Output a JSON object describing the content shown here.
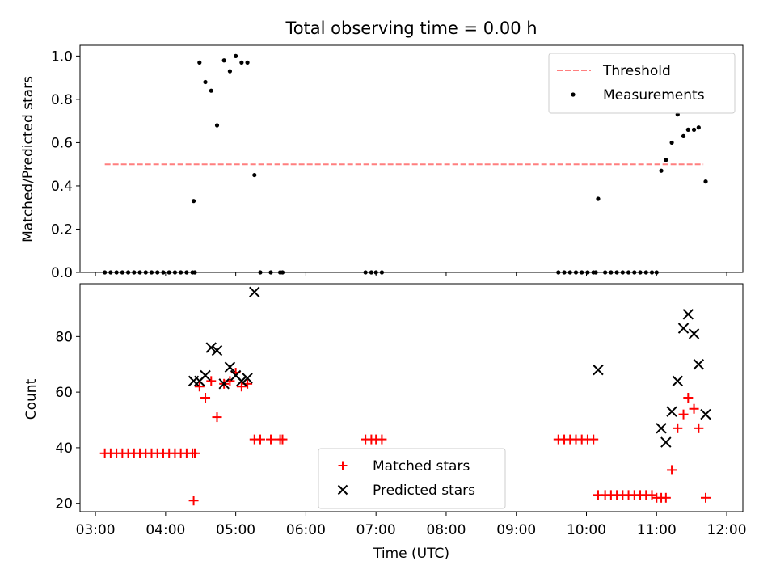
{
  "chart_data": [
    {
      "type": "scatter",
      "title": "Total observing time = 0.00 h",
      "xlabel": "",
      "ylabel": "Matched/Predicted stars",
      "ylim": [
        0,
        1.05
      ],
      "yticks": [
        "0.0",
        "0.2",
        "0.4",
        "0.6",
        "0.8",
        "1.0"
      ],
      "legend_placement": "top-right",
      "threshold": {
        "name": "Threshold",
        "value": 0.5,
        "x_start": "03:08",
        "x_end": "11:40",
        "color": "#ff7f7f"
      },
      "series": [
        {
          "name": "Measurements",
          "color": "#000000",
          "points": [
            [
              "03:08",
              0
            ],
            [
              "03:13",
              0
            ],
            [
              "03:18",
              0
            ],
            [
              "03:23",
              0
            ],
            [
              "03:28",
              0
            ],
            [
              "03:33",
              0
            ],
            [
              "03:38",
              0
            ],
            [
              "03:43",
              0
            ],
            [
              "03:48",
              0
            ],
            [
              "03:53",
              0
            ],
            [
              "03:58",
              0
            ],
            [
              "04:03",
              0
            ],
            [
              "04:08",
              0
            ],
            [
              "04:13",
              0
            ],
            [
              "04:18",
              0
            ],
            [
              "04:23",
              0
            ],
            [
              "04:25",
              0
            ],
            [
              "04:24",
              0.33
            ],
            [
              "04:29",
              0.97
            ],
            [
              "04:34",
              0.88
            ],
            [
              "04:39",
              0.84
            ],
            [
              "04:44",
              0.68
            ],
            [
              "04:50",
              0.98
            ],
            [
              "04:55",
              0.93
            ],
            [
              "05:00",
              1.0
            ],
            [
              "05:05",
              0.97
            ],
            [
              "05:10",
              0.97
            ],
            [
              "05:16",
              0.45
            ],
            [
              "05:21",
              0
            ],
            [
              "05:30",
              0
            ],
            [
              "05:38",
              0
            ],
            [
              "05:40",
              0
            ],
            [
              "06:51",
              0
            ],
            [
              "06:56",
              0
            ],
            [
              "07:00",
              0
            ],
            [
              "07:05",
              0
            ],
            [
              "09:36",
              0
            ],
            [
              "09:41",
              0
            ],
            [
              "09:46",
              0
            ],
            [
              "09:51",
              0
            ],
            [
              "09:56",
              0
            ],
            [
              "10:01",
              0
            ],
            [
              "10:06",
              0
            ],
            [
              "10:08",
              0
            ],
            [
              "10:10",
              0.34
            ],
            [
              "10:16",
              0
            ],
            [
              "10:21",
              0
            ],
            [
              "10:26",
              0
            ],
            [
              "10:31",
              0
            ],
            [
              "10:36",
              0
            ],
            [
              "10:41",
              0
            ],
            [
              "10:46",
              0
            ],
            [
              "10:51",
              0
            ],
            [
              "10:56",
              0
            ],
            [
              "11:00",
              0
            ],
            [
              "11:04",
              0.47
            ],
            [
              "11:08",
              0.52
            ],
            [
              "11:13",
              0.6
            ],
            [
              "11:18",
              0.73
            ],
            [
              "11:23",
              0.63
            ],
            [
              "11:27",
              0.66
            ],
            [
              "11:32",
              0.66
            ],
            [
              "11:36",
              0.67
            ],
            [
              "11:42",
              0.42
            ]
          ]
        }
      ]
    },
    {
      "type": "scatter",
      "title": "",
      "xlabel": "Time (UTC)",
      "ylabel": "Count",
      "ylim": [
        17,
        99
      ],
      "yticks": [
        "20",
        "40",
        "60",
        "80"
      ],
      "xticks": [
        "03:00",
        "04:00",
        "05:00",
        "06:00",
        "07:00",
        "08:00",
        "09:00",
        "10:00",
        "11:00",
        "12:00"
      ],
      "legend_placement": "lower-center",
      "series": [
        {
          "name": "Matched stars",
          "marker": "plus",
          "color": "#ff0000",
          "points": [
            [
              "03:08",
              38
            ],
            [
              "03:13",
              38
            ],
            [
              "03:18",
              38
            ],
            [
              "03:23",
              38
            ],
            [
              "03:28",
              38
            ],
            [
              "03:33",
              38
            ],
            [
              "03:38",
              38
            ],
            [
              "03:43",
              38
            ],
            [
              "03:48",
              38
            ],
            [
              "03:53",
              38
            ],
            [
              "03:58",
              38
            ],
            [
              "04:03",
              38
            ],
            [
              "04:08",
              38
            ],
            [
              "04:13",
              38
            ],
            [
              "04:18",
              38
            ],
            [
              "04:23",
              38
            ],
            [
              "04:25",
              38
            ],
            [
              "04:24",
              21
            ],
            [
              "04:29",
              62
            ],
            [
              "04:34",
              58
            ],
            [
              "04:39",
              64
            ],
            [
              "04:44",
              51
            ],
            [
              "04:50",
              63
            ],
            [
              "04:55",
              64
            ],
            [
              "05:00",
              67
            ],
            [
              "05:05",
              62
            ],
            [
              "05:10",
              63
            ],
            [
              "05:16",
              43
            ],
            [
              "05:21",
              43
            ],
            [
              "05:30",
              43
            ],
            [
              "05:38",
              43
            ],
            [
              "05:40",
              43
            ],
            [
              "06:51",
              43
            ],
            [
              "06:56",
              43
            ],
            [
              "07:00",
              43
            ],
            [
              "07:05",
              43
            ],
            [
              "09:36",
              43
            ],
            [
              "09:41",
              43
            ],
            [
              "09:46",
              43
            ],
            [
              "09:51",
              43
            ],
            [
              "09:56",
              43
            ],
            [
              "10:01",
              43
            ],
            [
              "10:06",
              43
            ],
            [
              "10:10",
              23
            ],
            [
              "10:16",
              23
            ],
            [
              "10:21",
              23
            ],
            [
              "10:26",
              23
            ],
            [
              "10:31",
              23
            ],
            [
              "10:36",
              23
            ],
            [
              "10:41",
              23
            ],
            [
              "10:46",
              23
            ],
            [
              "10:51",
              23
            ],
            [
              "10:56",
              23
            ],
            [
              "11:00",
              22
            ],
            [
              "11:04",
              22
            ],
            [
              "11:08",
              22
            ],
            [
              "11:13",
              32
            ],
            [
              "11:18",
              47
            ],
            [
              "11:23",
              52
            ],
            [
              "11:27",
              58
            ],
            [
              "11:32",
              54
            ],
            [
              "11:36",
              47
            ],
            [
              "11:42",
              22
            ]
          ]
        },
        {
          "name": "Predicted stars",
          "marker": "x",
          "color": "#000000",
          "points": [
            [
              "04:24",
              64
            ],
            [
              "04:29",
              64
            ],
            [
              "04:34",
              66
            ],
            [
              "04:39",
              76
            ],
            [
              "04:44",
              75
            ],
            [
              "04:50",
              63
            ],
            [
              "04:55",
              69
            ],
            [
              "05:00",
              66
            ],
            [
              "05:05",
              64
            ],
            [
              "05:10",
              65
            ],
            [
              "05:16",
              96
            ],
            [
              "10:10",
              68
            ],
            [
              "11:04",
              47
            ],
            [
              "11:08",
              42
            ],
            [
              "11:13",
              53
            ],
            [
              "11:18",
              64
            ],
            [
              "11:23",
              83
            ],
            [
              "11:27",
              88
            ],
            [
              "11:32",
              81
            ],
            [
              "11:36",
              70
            ],
            [
              "11:42",
              52
            ]
          ]
        }
      ]
    }
  ]
}
